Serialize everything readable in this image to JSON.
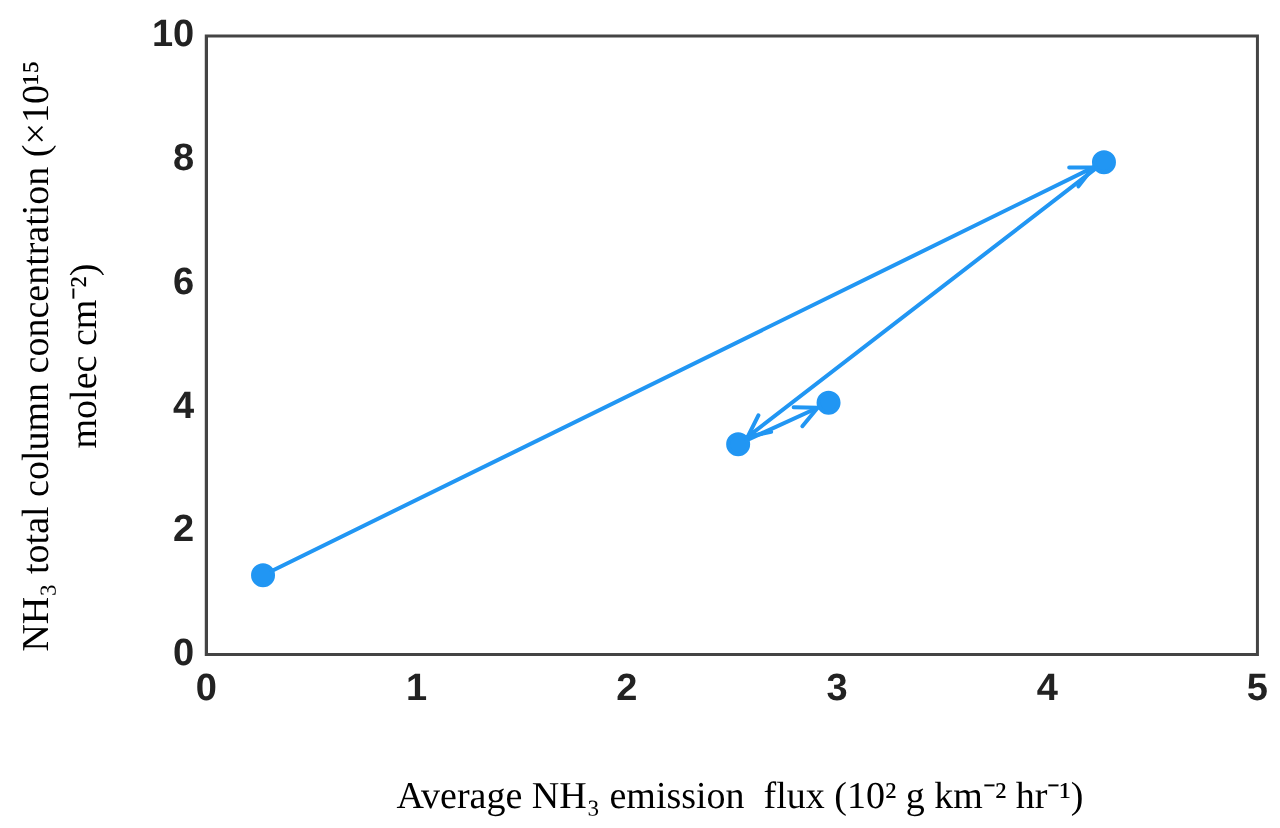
{
  "chart_data": {
    "type": "line",
    "xlabel": "Average NH₃ emission  flux (10² g km⁻² hr⁻¹)",
    "ylabel": "NH₃ total column concentration (×10¹⁵ molec cm⁻²)",
    "x": [
      0.27,
      4.27,
      2.53,
      2.96
    ],
    "series": [
      {
        "color": "#2196f3",
        "values": [
          1.28,
          7.96,
          3.4,
          4.07
        ]
      }
    ],
    "xlim": [
      0,
      5
    ],
    "ylim": [
      0,
      10
    ],
    "xticks": [
      0,
      1,
      2,
      3,
      4,
      5
    ],
    "yticks": [
      0,
      2,
      4,
      6,
      8,
      10
    ],
    "marker": "circle",
    "line_style": "solid"
  }
}
